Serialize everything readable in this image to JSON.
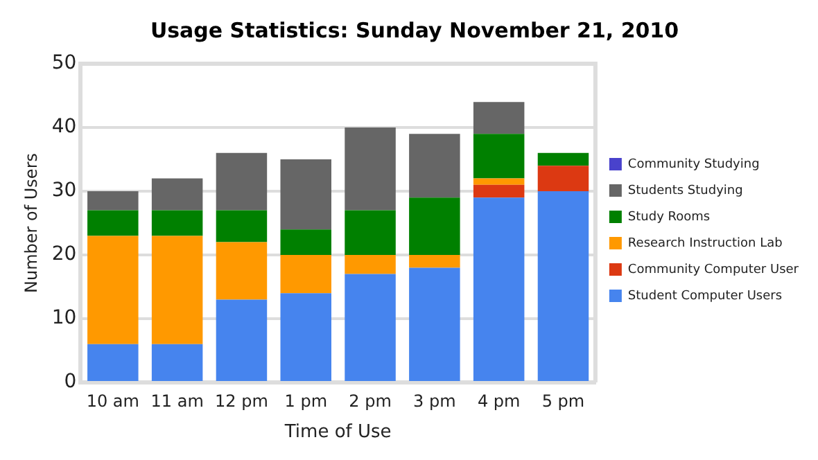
{
  "chart_data": {
    "type": "bar",
    "title": "Usage Statistics: Sunday November 21, 2010",
    "xlabel": "Time of Use",
    "ylabel": "Number of Users",
    "categories": [
      "10 am",
      "11 am",
      "12 pm",
      "1 pm",
      "2 pm",
      "3 pm",
      "4 pm",
      "5 pm"
    ],
    "stacked": true,
    "ylim": [
      0,
      50
    ],
    "yticks": [
      0,
      10,
      20,
      30,
      40,
      50
    ],
    "grid": "y",
    "legend": "right",
    "series": [
      {
        "name": "Student Computer Users",
        "color": "#4684ee",
        "values": [
          6,
          6,
          13,
          14,
          17,
          18,
          29,
          30
        ]
      },
      {
        "name": "Community Computer User",
        "color": "#dc3912",
        "values": [
          0,
          0,
          0,
          0,
          0,
          0,
          2,
          4
        ]
      },
      {
        "name": "Research Instruction Lab",
        "color": "#ff9900",
        "values": [
          17,
          17,
          9,
          6,
          3,
          2,
          1,
          0
        ]
      },
      {
        "name": "Study Rooms",
        "color": "#008000",
        "values": [
          4,
          4,
          5,
          4,
          7,
          9,
          7,
          2
        ]
      },
      {
        "name": "Students Studying",
        "color": "#666666",
        "values": [
          3,
          5,
          9,
          11,
          13,
          10,
          5,
          0
        ]
      },
      {
        "name": "Community Studying",
        "color": "#4942cc",
        "values": [
          0,
          0,
          0,
          0,
          0,
          0,
          0,
          0
        ]
      }
    ]
  }
}
